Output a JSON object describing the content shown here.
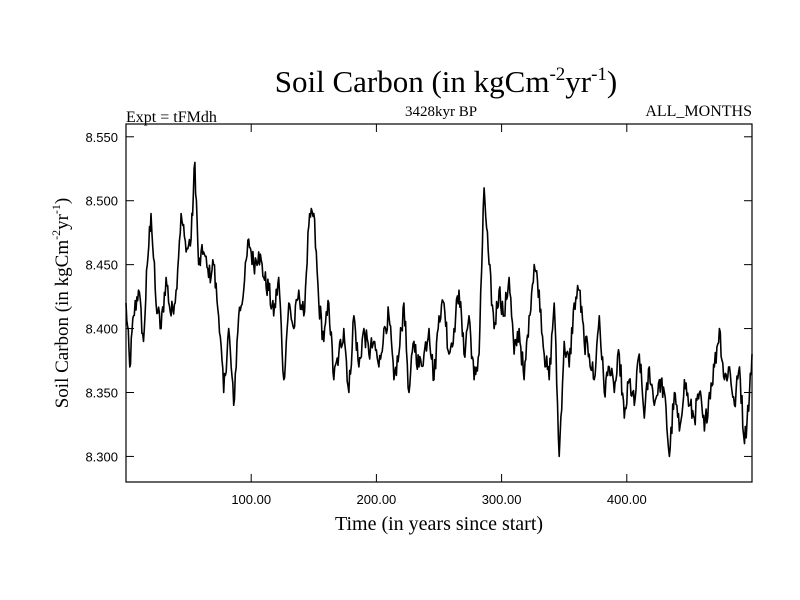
{
  "chart_data": {
    "type": "line",
    "title": "Soil Carbon (in kgCm",
    "title_sup1": "-2",
    "title_mid": "yr",
    "title_sup2": "-1",
    "title_end": ")",
    "subtitle": "3428kyr BP",
    "left_label": "Expt = tFMdh",
    "right_label": "ALL_MONTHS",
    "xlabel": "Time (in years since start)",
    "ylabel": "Soil Carbon (in kgCm",
    "ylabel_sup1": "-2",
    "ylabel_mid": "yr",
    "ylabel_sup2": "-1",
    "ylabel_end": ")",
    "xlim": [
      0,
      500
    ],
    "ylim": [
      8.28,
      8.56
    ],
    "x_ticks": [
      {
        "value": 100,
        "label": "100.00"
      },
      {
        "value": 200,
        "label": "200.00"
      },
      {
        "value": 300,
        "label": "300.00"
      },
      {
        "value": 400,
        "label": "400.00"
      }
    ],
    "y_ticks": [
      {
        "value": 8.3,
        "label": "8.300"
      },
      {
        "value": 8.35,
        "label": "8.350"
      },
      {
        "value": 8.4,
        "label": "8.400"
      },
      {
        "value": 8.45,
        "label": "8.450"
      },
      {
        "value": 8.5,
        "label": "8.500"
      },
      {
        "value": 8.55,
        "label": "8.550"
      }
    ],
    "series": [
      {
        "name": "Soil Carbon",
        "x": [
          0,
          3,
          6,
          10,
          14,
          17,
          20,
          24,
          28,
          32,
          36,
          40,
          44,
          48,
          52,
          55,
          58,
          62,
          66,
          70,
          74,
          78,
          82,
          86,
          90,
          94,
          98,
          102,
          106,
          110,
          114,
          118,
          122,
          126,
          130,
          134,
          138,
          142,
          146,
          150,
          154,
          158,
          162,
          166,
          170,
          174,
          178,
          182,
          186,
          190,
          194,
          198,
          202,
          206,
          210,
          214,
          218,
          222,
          226,
          230,
          234,
          238,
          242,
          246,
          250,
          254,
          258,
          262,
          266,
          270,
          274,
          278,
          282,
          286,
          290,
          294,
          298,
          302,
          306,
          310,
          314,
          318,
          322,
          326,
          330,
          334,
          338,
          342,
          346,
          350,
          354,
          358,
          362,
          366,
          370,
          374,
          378,
          382,
          386,
          390,
          394,
          398,
          402,
          406,
          410,
          414,
          418,
          422,
          426,
          430,
          434,
          438,
          442,
          446,
          450,
          454,
          458,
          462,
          466,
          470,
          474,
          478,
          482,
          486,
          490,
          494,
          498,
          500
        ],
        "values": [
          8.42,
          8.37,
          8.41,
          8.43,
          8.39,
          8.45,
          8.49,
          8.42,
          8.4,
          8.44,
          8.41,
          8.43,
          8.49,
          8.46,
          8.47,
          8.53,
          8.45,
          8.46,
          8.44,
          8.45,
          8.41,
          8.35,
          8.4,
          8.34,
          8.41,
          8.43,
          8.47,
          8.45,
          8.46,
          8.44,
          8.43,
          8.41,
          8.44,
          8.36,
          8.42,
          8.4,
          8.43,
          8.41,
          8.48,
          8.49,
          8.42,
          8.39,
          8.42,
          8.36,
          8.38,
          8.4,
          8.35,
          8.41,
          8.37,
          8.4,
          8.38,
          8.39,
          8.37,
          8.4,
          8.41,
          8.36,
          8.38,
          8.42,
          8.35,
          8.39,
          8.37,
          8.38,
          8.4,
          8.36,
          8.41,
          8.42,
          8.38,
          8.4,
          8.43,
          8.38,
          8.41,
          8.36,
          8.38,
          8.51,
          8.45,
          8.4,
          8.43,
          8.41,
          8.44,
          8.38,
          8.4,
          8.36,
          8.41,
          8.45,
          8.43,
          8.38,
          8.36,
          8.42,
          8.3,
          8.39,
          8.37,
          8.42,
          8.43,
          8.39,
          8.38,
          8.36,
          8.41,
          8.35,
          8.37,
          8.35,
          8.38,
          8.33,
          8.36,
          8.34,
          8.38,
          8.33,
          8.37,
          8.34,
          8.36,
          8.35,
          8.3,
          8.35,
          8.32,
          8.36,
          8.34,
          8.33,
          8.35,
          8.32,
          8.35,
          8.37,
          8.4,
          8.36,
          8.37,
          8.34,
          8.37,
          8.31,
          8.35,
          8.38
        ]
      }
    ]
  }
}
